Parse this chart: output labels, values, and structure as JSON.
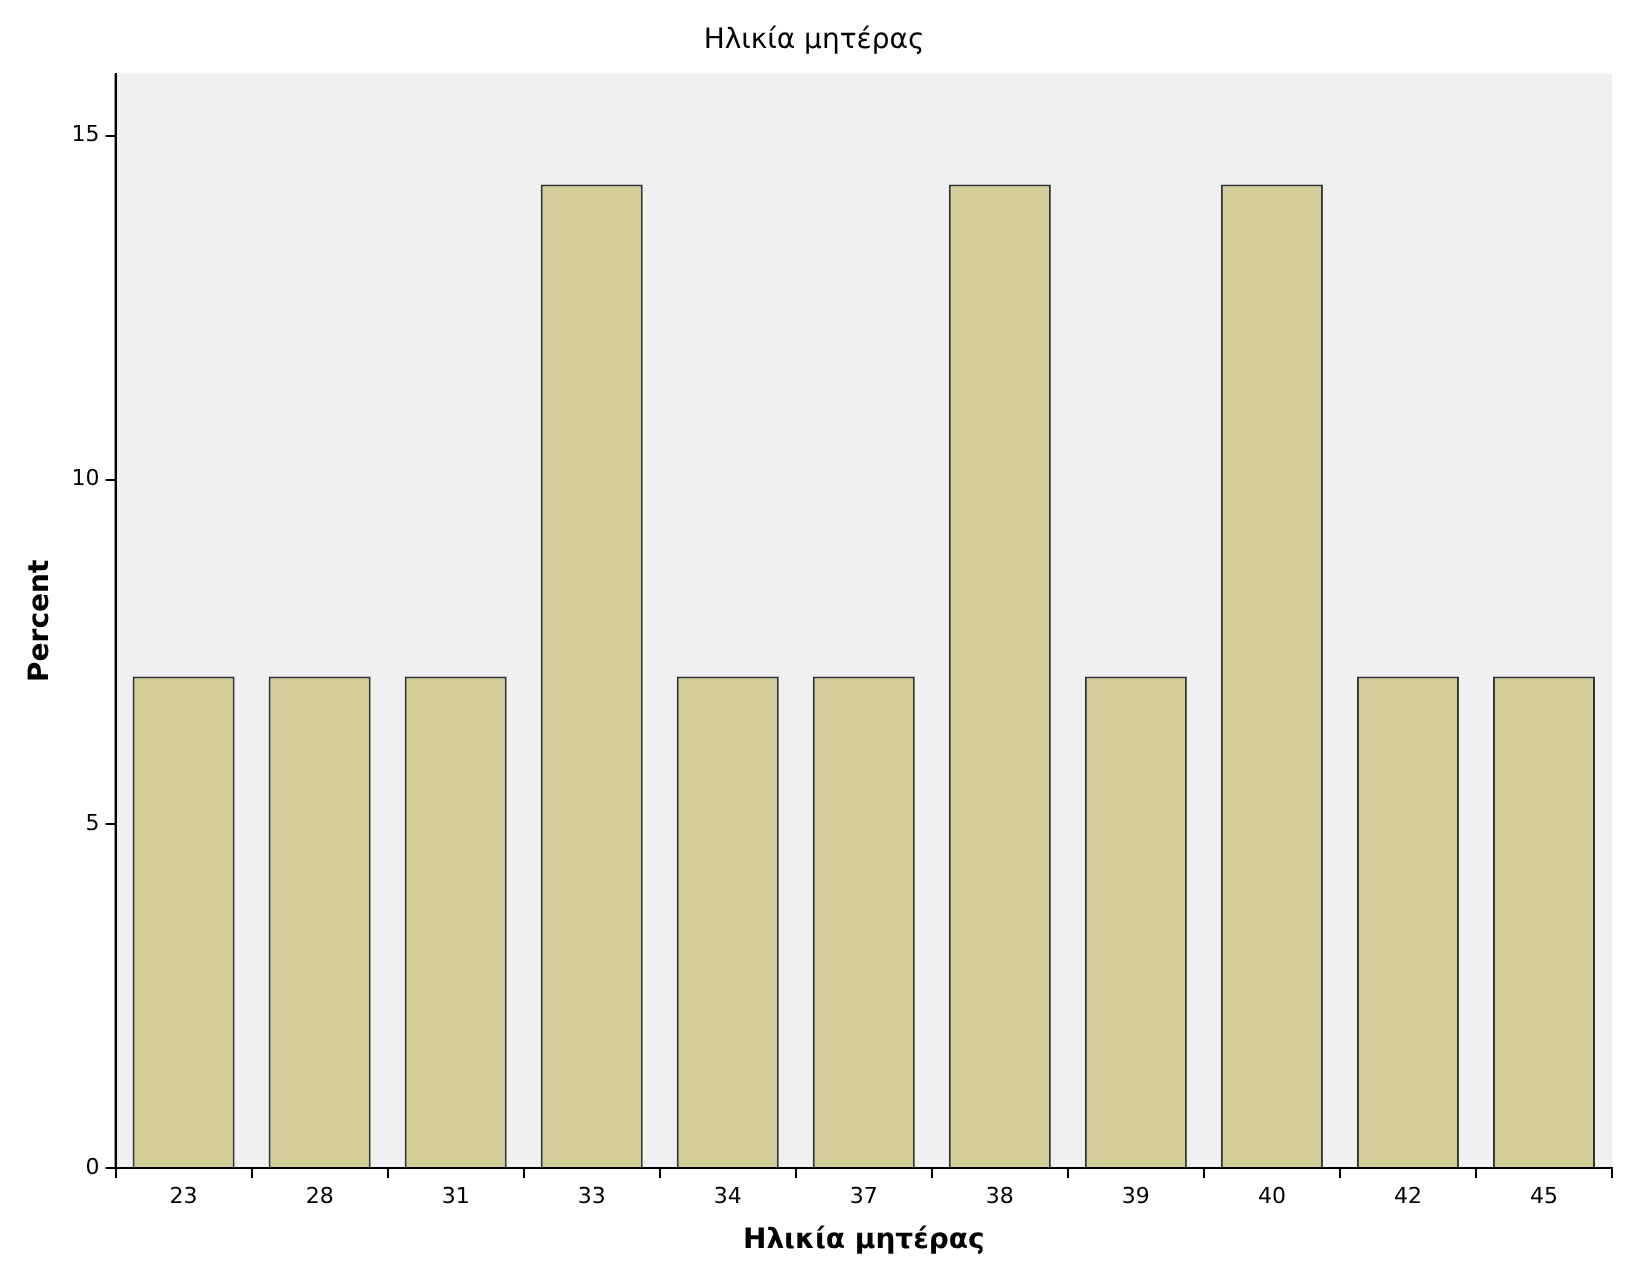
{
  "chart_data": {
    "type": "bar",
    "title": "Ηλικία μητέρας",
    "xlabel": "Ηλικία μητέρας",
    "ylabel": "Percent",
    "categories": [
      "23",
      "28",
      "31",
      "33",
      "34",
      "37",
      "38",
      "39",
      "40",
      "42",
      "45"
    ],
    "values": [
      7.14,
      7.14,
      7.14,
      14.29,
      7.14,
      7.14,
      14.29,
      7.14,
      14.29,
      7.14,
      7.14
    ],
    "color": "#d3ce97",
    "ylim": [
      0,
      15.9
    ],
    "yticks": [
      0,
      5,
      10,
      15
    ],
    "grid": false,
    "legend": false
  }
}
